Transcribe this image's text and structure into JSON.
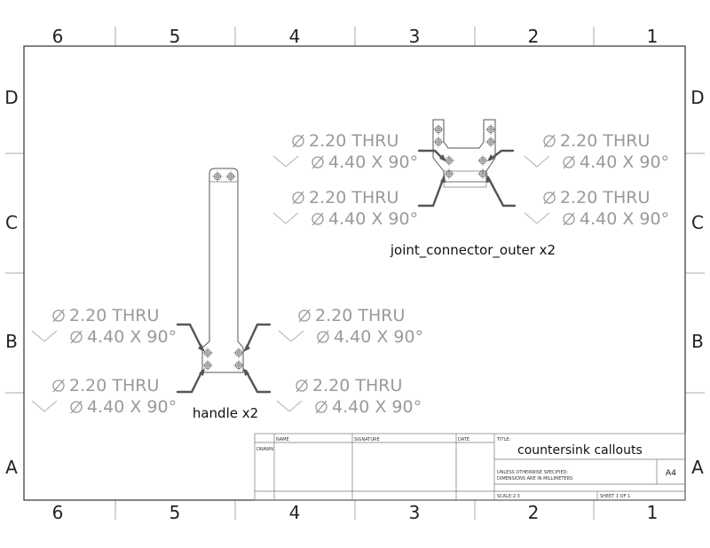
{
  "zones": {
    "columns": [
      "6",
      "5",
      "4",
      "3",
      "2",
      "1"
    ],
    "rows": [
      "D",
      "C",
      "B",
      "A"
    ]
  },
  "callouts": {
    "thru": "2.20 THRU",
    "csk": "4.40 X 90°"
  },
  "parts": {
    "joint_connector": "joint_connector_outer x2",
    "handle": "handle x2"
  },
  "title_block": {
    "name_header": "NAME",
    "signature_header": "SIGNATURE",
    "date_header": "DATE",
    "drawn_label": "DRAWN",
    "title_header": "TITLE:",
    "title": "countersink callouts",
    "note_line1": "UNLESS OTHERWISE SPECIFIED:",
    "note_line2": "DIMENSIONS ARE IN MILLIMETERS",
    "size": "A4",
    "scale": "SCALE:2:3",
    "sheet": "SHEET 1 OF 1"
  }
}
